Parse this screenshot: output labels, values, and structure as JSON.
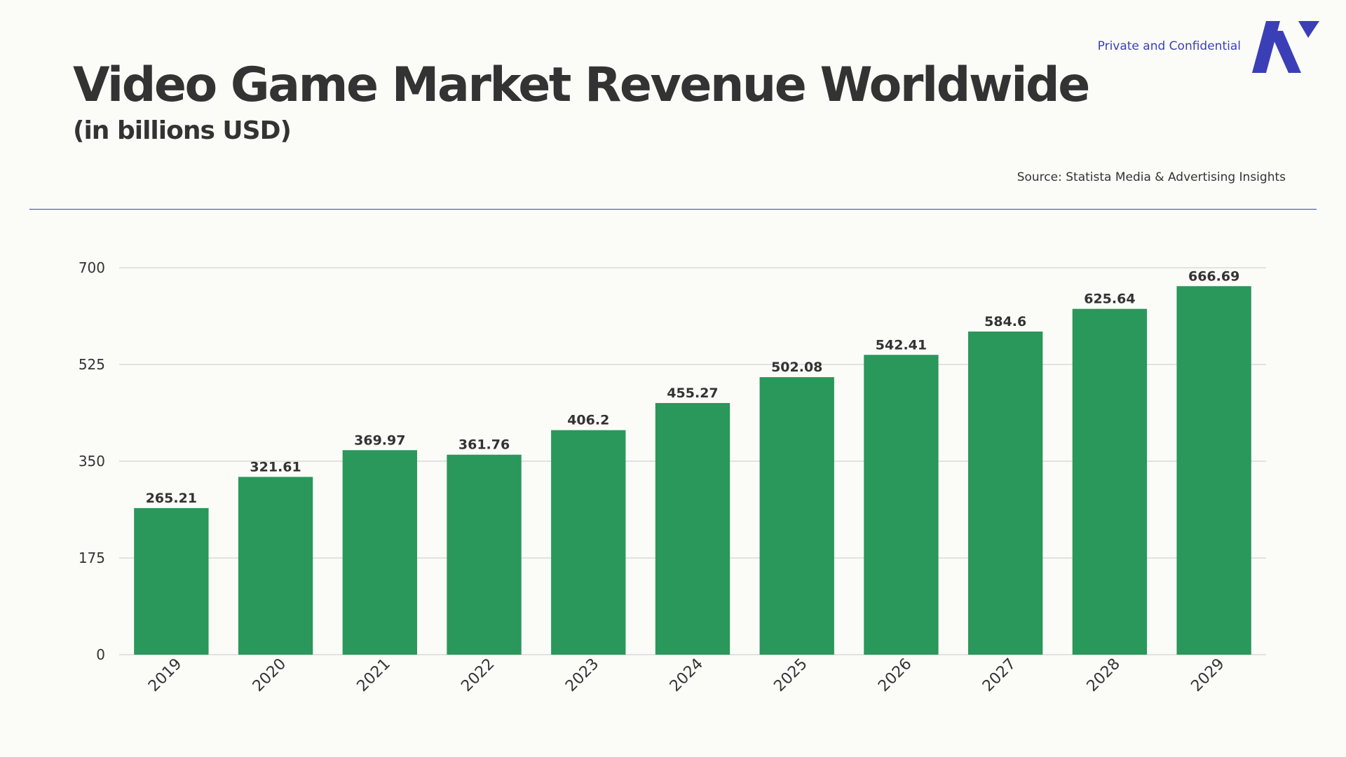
{
  "header": {
    "title": "Video Game Market Revenue Worldwide",
    "subtitle": "(in billions USD)",
    "confidential_label": "Private and Confidential",
    "source": "Source: Statista Media & Advertising Insights",
    "logo_icon": "brand-logo-icon"
  },
  "colors": {
    "bar": "#2a975b",
    "accent": "#3b3fb7",
    "text": "#333333",
    "grid": "#c8c8c8",
    "background": "#fbfcf8"
  },
  "chart_data": {
    "type": "bar",
    "title": "Video Game Market Revenue Worldwide",
    "subtitle": "(in billions USD)",
    "xlabel": "",
    "ylabel": "",
    "categories": [
      "2019",
      "2020",
      "2021",
      "2022",
      "2023",
      "2024",
      "2025",
      "2026",
      "2027",
      "2028",
      "2029"
    ],
    "values": [
      265.21,
      321.61,
      369.97,
      361.76,
      406.2,
      455.27,
      502.08,
      542.41,
      584.6,
      625.64,
      666.69
    ],
    "value_labels": [
      "265.21",
      "321.61",
      "369.97",
      "361.76",
      "406.2",
      "455.27",
      "502.08",
      "542.41",
      "584.6",
      "625.64",
      "666.69"
    ],
    "yticks": [
      0,
      175,
      350,
      525,
      700
    ],
    "ylim": [
      0,
      700
    ],
    "grid": true,
    "legend": "none",
    "xtick_rotation": -45
  }
}
